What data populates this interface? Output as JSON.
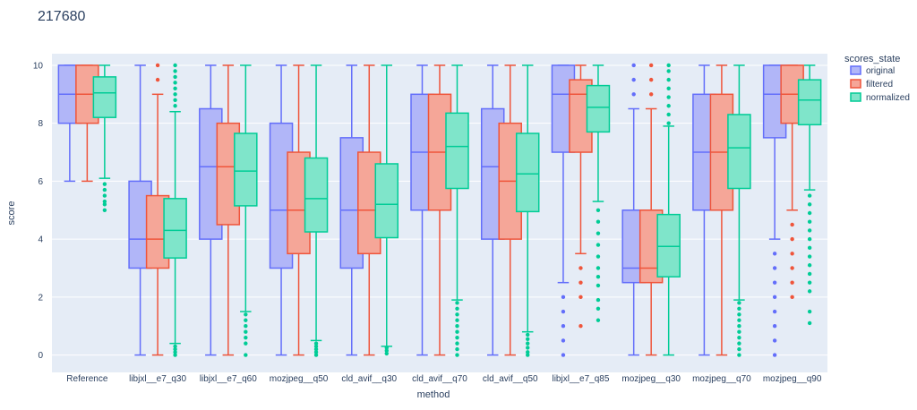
{
  "chart_data": {
    "type": "box",
    "title": "217680",
    "xlabel": "method",
    "ylabel": "score",
    "ylim": [
      -0.6,
      10.4
    ],
    "yticks": [
      0,
      2,
      4,
      6,
      8,
      10
    ],
    "grid": true,
    "legend": {
      "title": "scores_state",
      "placement": "top-right-outside",
      "entries": [
        "original",
        "filtered",
        "normalized"
      ]
    },
    "categories": [
      "Reference",
      "libjxl__e7_q30",
      "libjxl__e7_q60",
      "mozjpeg__q50",
      "cld_avif__q30",
      "cld_avif__q70",
      "cld_avif__q50",
      "libjxl__e7_q85",
      "mozjpeg__q30",
      "mozjpeg__q70",
      "mozjpeg__q90"
    ],
    "series": [
      {
        "name": "original",
        "color": "#636efa",
        "fill": "#b1b6f8",
        "boxes": [
          {
            "lower": 6,
            "q1": 8,
            "median": 9,
            "q3": 10,
            "upper": 10,
            "outliers": []
          },
          {
            "lower": 0,
            "q1": 3,
            "median": 4,
            "q3": 6,
            "upper": 10,
            "outliers": []
          },
          {
            "lower": 0,
            "q1": 4,
            "median": 6.5,
            "q3": 8.5,
            "upper": 10,
            "outliers": []
          },
          {
            "lower": 0,
            "q1": 3,
            "median": 5,
            "q3": 8,
            "upper": 10,
            "outliers": []
          },
          {
            "lower": 0,
            "q1": 3,
            "median": 5,
            "q3": 7.5,
            "upper": 10,
            "outliers": []
          },
          {
            "lower": 0,
            "q1": 5,
            "median": 7,
            "q3": 9,
            "upper": 10,
            "outliers": []
          },
          {
            "lower": 0,
            "q1": 4,
            "median": 6.5,
            "q3": 8.5,
            "upper": 10,
            "outliers": []
          },
          {
            "lower": 2.5,
            "q1": 7,
            "median": 9,
            "q3": 10,
            "upper": 10,
            "outliers": [
              2,
              1.5,
              1,
              0.5,
              0
            ]
          },
          {
            "lower": 0,
            "q1": 2.5,
            "median": 3,
            "q3": 5,
            "upper": 8.5,
            "outliers": [
              9,
              9.5,
              10
            ]
          },
          {
            "lower": 0,
            "q1": 5,
            "median": 7,
            "q3": 9,
            "upper": 10,
            "outliers": []
          },
          {
            "lower": 4,
            "q1": 7.5,
            "median": 9,
            "q3": 10,
            "upper": 10,
            "outliers": [
              3.5,
              3,
              2.5,
              2,
              1.5,
              1,
              0.5,
              0
            ]
          }
        ]
      },
      {
        "name": "filtered",
        "color": "#ef553b",
        "fill": "#f5a698",
        "boxes": [
          {
            "lower": 6,
            "q1": 8,
            "median": 9,
            "q3": 10,
            "upper": 10,
            "outliers": []
          },
          {
            "lower": 0,
            "q1": 3,
            "median": 4,
            "q3": 5.5,
            "upper": 9,
            "outliers": [
              9.5,
              10
            ]
          },
          {
            "lower": 0,
            "q1": 4.5,
            "median": 6.5,
            "q3": 8,
            "upper": 10,
            "outliers": []
          },
          {
            "lower": 0,
            "q1": 3.5,
            "median": 5,
            "q3": 7,
            "upper": 10,
            "outliers": []
          },
          {
            "lower": 0,
            "q1": 3.5,
            "median": 5,
            "q3": 7,
            "upper": 10,
            "outliers": []
          },
          {
            "lower": 0,
            "q1": 5,
            "median": 7,
            "q3": 9,
            "upper": 10,
            "outliers": []
          },
          {
            "lower": 0,
            "q1": 4,
            "median": 6,
            "q3": 8,
            "upper": 10,
            "outliers": []
          },
          {
            "lower": 3.5,
            "q1": 7,
            "median": 9,
            "q3": 9.5,
            "upper": 10,
            "outliers": [
              3,
              2.5,
              2,
              1
            ]
          },
          {
            "lower": 0,
            "q1": 2.5,
            "median": 3,
            "q3": 5,
            "upper": 8.5,
            "outliers": [
              9,
              9.5,
              10
            ]
          },
          {
            "lower": 0,
            "q1": 5,
            "median": 7,
            "q3": 9,
            "upper": 10,
            "outliers": []
          },
          {
            "lower": 5,
            "q1": 8,
            "median": 9,
            "q3": 10,
            "upper": 10,
            "outliers": [
              4.5,
              4,
              3.5,
              3,
              2.5,
              2
            ]
          }
        ]
      },
      {
        "name": "normalized",
        "color": "#00cc96",
        "fill": "#7fe5ca",
        "boxes": [
          {
            "lower": 6.1,
            "q1": 8.2,
            "median": 9.05,
            "q3": 9.6,
            "upper": 10,
            "outliers": [
              5.9,
              5.7,
              5.5,
              5.3,
              5.2,
              5.0
            ]
          },
          {
            "lower": 0.4,
            "q1": 3.35,
            "median": 4.3,
            "q3": 5.4,
            "upper": 8.4,
            "outliers": [
              0.3,
              0.2,
              0.1,
              0,
              8.6,
              8.8,
              9.0,
              9.2,
              9.4,
              9.6,
              9.8,
              10
            ]
          },
          {
            "lower": 1.5,
            "q1": 5.15,
            "median": 6.35,
            "q3": 7.65,
            "upper": 10,
            "outliers": [
              1.4,
              1.2,
              1.0,
              0.8,
              0.6,
              0.4,
              0
            ]
          },
          {
            "lower": 0.5,
            "q1": 4.25,
            "median": 5.4,
            "q3": 6.8,
            "upper": 10,
            "outliers": [
              0.4,
              0.3,
              0.2,
              0.1,
              0
            ]
          },
          {
            "lower": 0.3,
            "q1": 4.05,
            "median": 5.2,
            "q3": 6.6,
            "upper": 10,
            "outliers": [
              0.25,
              0.15,
              0.05
            ]
          },
          {
            "lower": 1.9,
            "q1": 5.75,
            "median": 7.2,
            "q3": 8.35,
            "upper": 10,
            "outliers": [
              1.8,
              1.6,
              1.4,
              1.2,
              1.0,
              0.8,
              0.6,
              0.4,
              0.2,
              0
            ]
          },
          {
            "lower": 0.8,
            "q1": 4.95,
            "median": 6.25,
            "q3": 7.65,
            "upper": 10,
            "outliers": [
              0.7,
              0.55,
              0.4,
              0.25,
              0.1,
              0
            ]
          },
          {
            "lower": 5.3,
            "q1": 7.7,
            "median": 8.55,
            "q3": 9.3,
            "upper": 10,
            "outliers": [
              5.0,
              4.6,
              4.2,
              3.8,
              3.4,
              3.0,
              2.7,
              2.4,
              1.9,
              1.6,
              1.2
            ]
          },
          {
            "lower": 0,
            "q1": 2.7,
            "median": 3.75,
            "q3": 4.85,
            "upper": 7.9,
            "outliers": [
              8.0,
              8.3,
              8.6,
              8.9,
              9.2,
              9.5,
              9.8,
              10
            ]
          },
          {
            "lower": 1.9,
            "q1": 5.75,
            "median": 7.15,
            "q3": 8.3,
            "upper": 10,
            "outliers": [
              1.8,
              1.6,
              1.4,
              1.2,
              1.0,
              0.8,
              0.6,
              0.4,
              0.2,
              0
            ]
          },
          {
            "lower": 5.7,
            "q1": 7.95,
            "median": 8.8,
            "q3": 9.5,
            "upper": 10,
            "outliers": [
              5.5,
              5.2,
              4.9,
              4.6,
              4.3,
              4.0,
              3.7,
              3.4,
              3.1,
              2.8,
              2.5,
              2.2,
              1.5,
              1.1
            ]
          }
        ]
      }
    ]
  }
}
